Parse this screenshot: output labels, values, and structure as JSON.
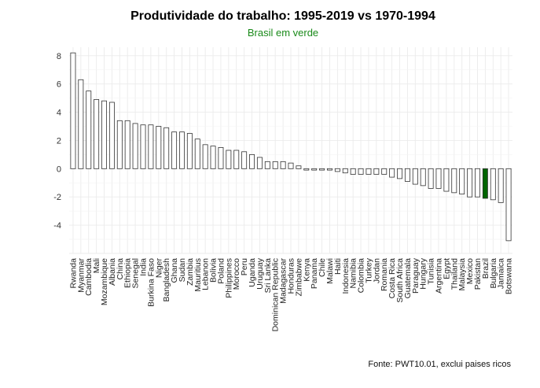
{
  "colors": {
    "default_fill": "#ffffff",
    "highlight_fill": "#006400",
    "bar_stroke": "#333333"
  },
  "chart_data": {
    "type": "bar",
    "title": "Produtividade do trabalho: 1995-2019 vs 1970-1994",
    "subtitle": "Brasil em verde",
    "caption": "Fonte: PWT10.01, exclui paises ricos",
    "xlabel": "",
    "ylabel": "",
    "ylim": [
      -6,
      8.6
    ],
    "yticks": [
      8,
      6,
      4,
      2,
      0,
      -2,
      -4
    ],
    "grid": true,
    "highlight": "Brazil",
    "categories": [
      "Rwanda",
      "Myanmar",
      "Cambodia",
      "Mali",
      "Mozambique",
      "Albania",
      "China",
      "Ethiopia",
      "Senegal",
      "India",
      "Burkina Faso",
      "Niger",
      "Bangladesh",
      "Ghana",
      "Sudan",
      "Zambia",
      "Mauritius",
      "Lebanon",
      "Bolivia",
      "Poland",
      "Philippines",
      "Morocco",
      "Peru",
      "Uganda",
      "Uruguay",
      "Sri Lanka",
      "Dominican Republic",
      "Madagascar",
      "Honduras",
      "Zimbabwe",
      "Kenya",
      "Panama",
      "Chile",
      "Malawi",
      "Haiti",
      "Indonesia",
      "Namibia",
      "Colombia",
      "Turkey",
      "Jordan",
      "Romania",
      "Costa Rica",
      "South Africa",
      "Guatemala",
      "Paraguay",
      "Hungary",
      "Tunisia",
      "Argentina",
      "Egypt",
      "Thailand",
      "Malaysia",
      "Mexico",
      "Pakistan",
      "Brazil",
      "Bulgaria",
      "Jamaica",
      "Botswana"
    ],
    "values": [
      8.2,
      6.3,
      5.5,
      4.9,
      4.8,
      4.7,
      3.4,
      3.4,
      3.2,
      3.1,
      3.1,
      3.0,
      2.9,
      2.6,
      2.6,
      2.5,
      2.1,
      1.7,
      1.6,
      1.5,
      1.3,
      1.3,
      1.2,
      1.0,
      0.8,
      0.5,
      0.5,
      0.5,
      0.4,
      0.2,
      -0.1,
      -0.1,
      -0.1,
      -0.1,
      -0.2,
      -0.3,
      -0.4,
      -0.4,
      -0.4,
      -0.4,
      -0.4,
      -0.6,
      -0.7,
      -0.9,
      -1.1,
      -1.2,
      -1.4,
      -1.4,
      -1.6,
      -1.7,
      -1.8,
      -2.0,
      -2.0,
      -2.1,
      -2.2,
      -2.4,
      -5.1
    ]
  }
}
